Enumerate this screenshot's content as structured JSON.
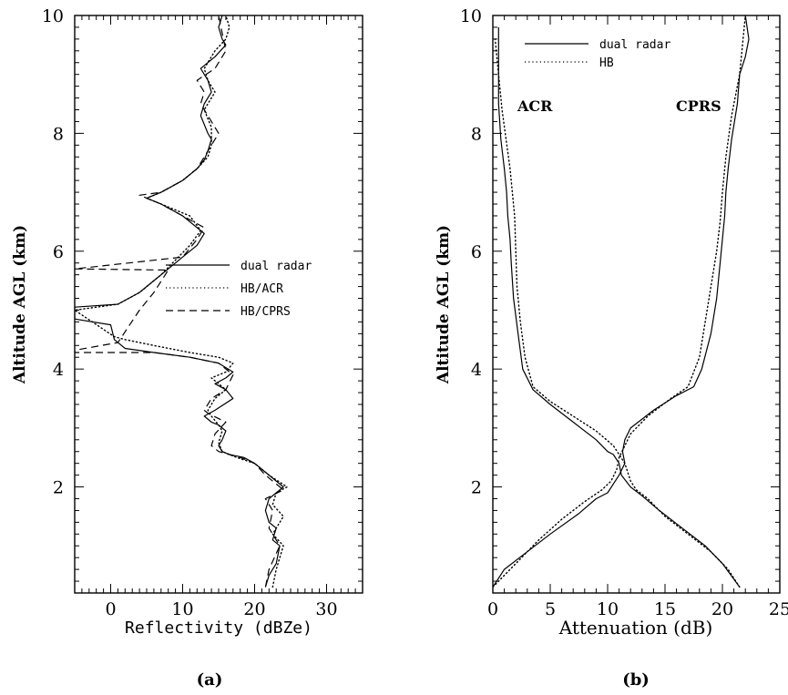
{
  "chart_data": [
    {
      "type": "line",
      "panel_label": "(a)",
      "xlabel": "Reflectivity (dBZe)",
      "ylabel": "Altitude AGL (km)",
      "xlim": [
        -5,
        35
      ],
      "ylim": [
        0.2,
        10
      ],
      "xticks": [
        0,
        10,
        20,
        30
      ],
      "yticks": [
        2,
        4,
        6,
        8,
        10
      ],
      "legend_position": "center-right",
      "series": [
        {
          "name": "dual radar",
          "style": "solid",
          "x": [
            21.5,
            22,
            23,
            23.5,
            22.5,
            23,
            22,
            21.5,
            22,
            24,
            22,
            20,
            18.5,
            16.5,
            15.5,
            15,
            15.5,
            16,
            15,
            14,
            13,
            14.5,
            17,
            16,
            14.5,
            16,
            17,
            15,
            11,
            6,
            2,
            0.5,
            0,
            -5,
            -5,
            -5,
            1,
            4,
            6,
            8,
            10,
            12,
            13,
            10,
            7,
            5,
            7,
            10,
            12,
            13,
            13.5,
            14,
            13.5,
            12.5,
            13,
            14,
            13.5,
            12.5,
            14.5,
            16,
            15.5,
            15,
            15.5
          ],
          "y": [
            0.3,
            0.5,
            0.7,
            1.0,
            1.1,
            1.3,
            1.4,
            1.6,
            1.8,
            2.0,
            2.2,
            2.4,
            2.5,
            2.55,
            2.6,
            2.7,
            2.8,
            2.95,
            3.05,
            3.1,
            3.2,
            3.3,
            3.5,
            3.65,
            3.75,
            3.85,
            3.95,
            4.1,
            4.2,
            4.28,
            4.35,
            4.5,
            4.75,
            4.85,
            5.0,
            5.05,
            5.1,
            5.3,
            5.5,
            5.7,
            5.9,
            6.1,
            6.3,
            6.6,
            6.8,
            6.9,
            7.0,
            7.2,
            7.4,
            7.55,
            7.7,
            7.9,
            8.0,
            8.3,
            8.5,
            8.7,
            8.9,
            9.1,
            9.3,
            9.5,
            9.6,
            9.8,
            10.0
          ]
        },
        {
          "name": "HB/ACR",
          "style": "dotted",
          "x": [
            22.5,
            23,
            24,
            22.5,
            24,
            22.5,
            23,
            24.5,
            22,
            20,
            17.5,
            15.5,
            15,
            15.5,
            15,
            14,
            13.5,
            14.5,
            16,
            15,
            14,
            16,
            17,
            15,
            11,
            6,
            2,
            0.5,
            -5,
            1,
            4,
            7,
            9,
            11,
            12.5,
            11,
            7,
            5,
            7,
            10,
            12,
            13.5,
            14,
            14,
            13,
            14.5,
            13.5,
            13,
            14.5,
            16,
            16.5,
            16
          ],
          "y": [
            0.3,
            0.6,
            1.0,
            1.2,
            1.5,
            1.7,
            1.9,
            2.0,
            2.2,
            2.4,
            2.5,
            2.6,
            2.75,
            2.95,
            3.05,
            3.2,
            3.3,
            3.5,
            3.65,
            3.75,
            3.85,
            3.95,
            4.1,
            4.2,
            4.28,
            4.4,
            4.5,
            4.55,
            5.0,
            5.1,
            5.3,
            5.6,
            5.85,
            6.1,
            6.35,
            6.6,
            6.8,
            6.9,
            7.0,
            7.2,
            7.4,
            7.6,
            7.8,
            8.1,
            8.4,
            8.7,
            8.9,
            9.1,
            9.4,
            9.6,
            9.8,
            10.0
          ]
        },
        {
          "name": "HB/CPRS",
          "style": "dashed",
          "x": [
            21.5,
            22,
            23.5,
            22,
            22.5,
            21.5,
            24,
            21.5,
            20,
            18,
            16.5,
            15,
            14,
            14.5,
            16,
            13.5,
            13,
            14,
            16,
            17,
            15,
            11,
            6,
            -5,
            -5,
            1,
            4,
            6,
            8,
            -5,
            10,
            12,
            13,
            10,
            7,
            4,
            7,
            10,
            12,
            13,
            14,
            15,
            13.5,
            12.5,
            13,
            12,
            14.5,
            16,
            15.5,
            15
          ],
          "y": [
            0.3,
            0.6,
            1.0,
            1.3,
            1.6,
            1.8,
            1.95,
            2.2,
            2.4,
            2.5,
            2.55,
            2.6,
            2.7,
            2.9,
            3.1,
            3.25,
            3.3,
            3.5,
            3.65,
            3.9,
            4.1,
            4.2,
            4.28,
            4.28,
            4.32,
            4.45,
            5.0,
            5.3,
            5.68,
            5.7,
            5.9,
            6.2,
            6.4,
            6.6,
            6.8,
            6.95,
            7.0,
            7.2,
            7.4,
            7.6,
            7.8,
            8.0,
            8.3,
            8.5,
            8.7,
            8.9,
            9.1,
            9.4,
            9.7,
            10.0
          ]
        }
      ]
    },
    {
      "type": "line",
      "panel_label": "(b)",
      "xlabel": "Attenuation (dB)",
      "ylabel": "Altitude AGL (km)",
      "xlim": [
        0,
        25
      ],
      "ylim": [
        0.2,
        10
      ],
      "xticks": [
        0,
        5,
        10,
        15,
        20,
        25
      ],
      "yticks": [
        2,
        4,
        6,
        8,
        10
      ],
      "legend_position": "top-left",
      "annotations": [
        "ACR",
        "CPRS"
      ],
      "series": [
        {
          "name": "dual radar",
          "style": "solid",
          "subseries": [
            {
              "x": [
                0,
                1,
                3,
                5,
                7.5,
                9,
                10,
                10.5,
                11,
                11.5,
                11.3,
                11.5,
                12,
                14,
                16,
                17.5,
                18.2,
                19,
                19.5,
                19.8,
                20,
                20.2,
                20.3,
                20.5,
                20.8,
                21.3,
                21.5,
                22,
                22.3,
                22
              ],
              "y": [
                0.3,
                0.6,
                0.9,
                1.2,
                1.55,
                1.8,
                1.9,
                2.05,
                2.2,
                2.4,
                2.6,
                2.8,
                3.0,
                3.3,
                3.55,
                3.7,
                4.0,
                4.6,
                5.2,
                5.8,
                6.2,
                6.6,
                7.0,
                7.4,
                7.9,
                8.5,
                9.0,
                9.3,
                9.6,
                10.0
              ]
            },
            {
              "x": [
                21.5,
                20,
                18.5,
                16.5,
                14.5,
                13,
                12,
                11.2,
                11,
                10.5,
                10,
                9,
                7,
                5,
                3.5,
                2.6,
                2.2,
                1.8,
                1.6,
                1.5,
                1.3,
                1.2,
                1.0,
                0.7,
                0.5,
                0.5,
                0.5
              ],
              "y": [
                0.3,
                0.7,
                1.0,
                1.3,
                1.6,
                1.85,
                2.0,
                2.2,
                2.4,
                2.55,
                2.6,
                2.8,
                3.1,
                3.4,
                3.65,
                4.0,
                4.6,
                5.2,
                5.8,
                6.2,
                6.6,
                7.0,
                7.4,
                7.9,
                8.5,
                9.2,
                9.8
              ]
            }
          ]
        },
        {
          "name": "HB",
          "style": "dotted",
          "subseries": [
            {
              "x": [
                0,
                2,
                4,
                6,
                8,
                9.5,
                10.3,
                10.8,
                11,
                11.5,
                12,
                13.5,
                15.5,
                17,
                18,
                18.5,
                19,
                19.5,
                19.8,
                20,
                20.3,
                20.8,
                21.5,
                22
              ],
              "y": [
                0.3,
                0.7,
                1.1,
                1.45,
                1.75,
                1.95,
                2.1,
                2.3,
                2.5,
                2.7,
                2.9,
                3.2,
                3.5,
                3.7,
                4.2,
                4.8,
                5.4,
                6.0,
                6.5,
                7.0,
                7.6,
                8.3,
                9.0,
                10.0
              ]
            },
            {
              "x": [
                21.5,
                20.5,
                19,
                17,
                15,
                13.5,
                12.5,
                12,
                11.5,
                10.5,
                9,
                7,
                5,
                3.5,
                2.8,
                2.4,
                2.1,
                2,
                1.9,
                1.5,
                0.8,
                0.2
              ],
              "y": [
                0.3,
                0.6,
                0.9,
                1.2,
                1.5,
                1.8,
                1.95,
                2.1,
                2.4,
                2.7,
                2.95,
                3.2,
                3.45,
                3.7,
                4.2,
                4.8,
                5.4,
                6.0,
                6.6,
                7.4,
                8.4,
                9.6
              ]
            }
          ]
        }
      ]
    }
  ]
}
